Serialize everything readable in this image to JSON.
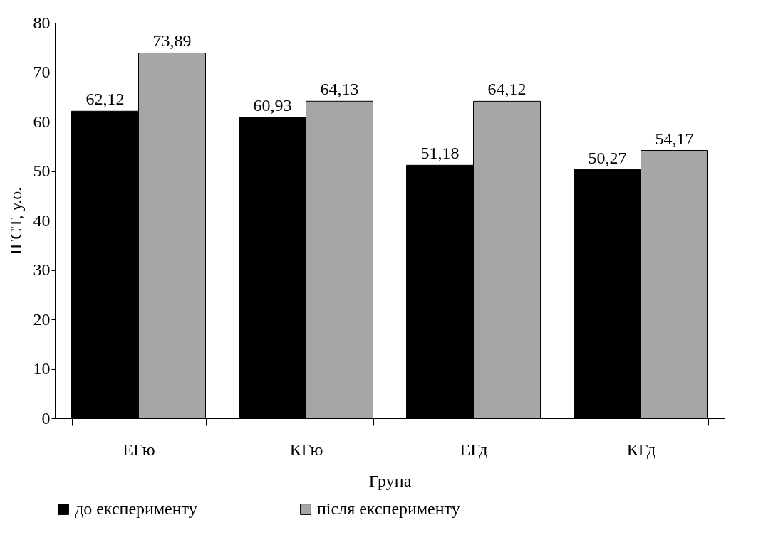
{
  "chart_data": {
    "type": "bar",
    "xlabel": "Група",
    "ylabel": "ІГСТ,  у.о.",
    "categories": [
      "ЕГю",
      "КГю",
      "ЕГд",
      "КГд"
    ],
    "series": [
      {
        "name": "до експерименту",
        "color": "#000000",
        "values": [
          62.12,
          60.93,
          51.18,
          50.27
        ],
        "value_labels": [
          "62,12",
          "60,93",
          "51,18",
          "50,27"
        ]
      },
      {
        "name": "після експерименту",
        "color": "#a6a6a6",
        "values": [
          73.89,
          64.13,
          64.12,
          54.17
        ],
        "value_labels": [
          "73,89",
          "64,13",
          "64,12",
          "54,17"
        ]
      }
    ],
    "ylim": [
      0,
      80
    ],
    "yticks": [
      0,
      10,
      20,
      30,
      40,
      50,
      60,
      70,
      80
    ],
    "grid": false,
    "legend": "bottom"
  }
}
